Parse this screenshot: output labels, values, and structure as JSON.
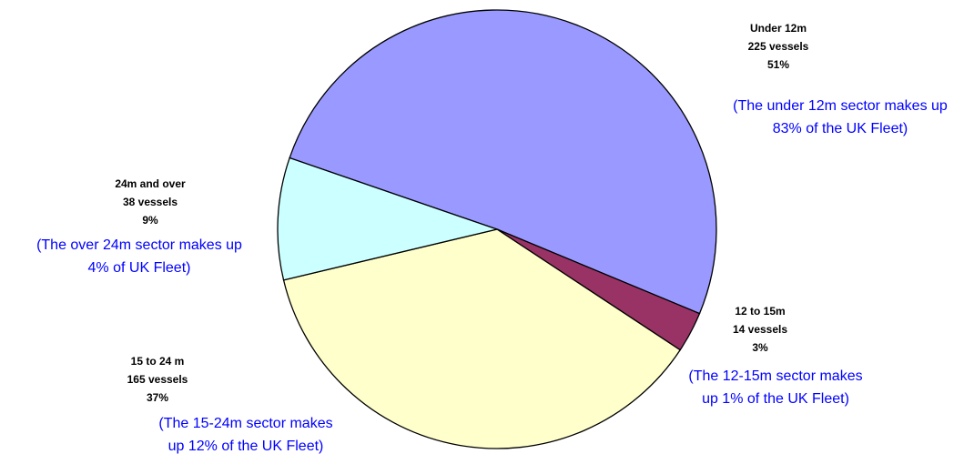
{
  "chart_data": {
    "type": "pie",
    "categories": [
      "Under 12m",
      "12 to 15m",
      "15 to 24 m",
      "24m and over"
    ],
    "values": [
      51,
      3,
      37,
      9
    ],
    "value_labels": [
      "51%",
      "3%",
      "37%",
      "9%"
    ],
    "counts": [
      "225 vessels",
      "14 vessels",
      "165 vessels",
      "38 vessels"
    ],
    "notes": [
      [
        "(The under 12m sector makes up",
        "83% of the UK Fleet)"
      ],
      [
        "(The 12-15m sector makes",
        "up 1% of the UK Fleet)"
      ],
      [
        "(The 15-24m sector makes",
        "up 12% of the UK Fleet)"
      ],
      [
        "(The over 24m sector makes up",
        "4% of UK Fleet)"
      ]
    ],
    "colors": [
      "#9999ff",
      "#993366",
      "#ffffcc",
      "#ccffff"
    ]
  }
}
